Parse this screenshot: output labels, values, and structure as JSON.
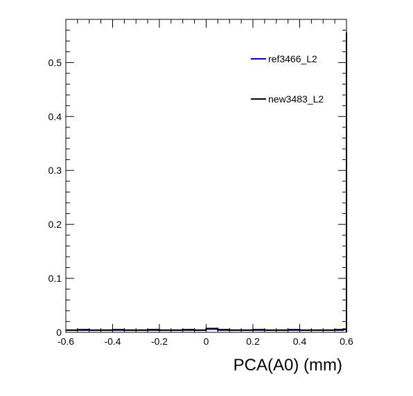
{
  "chart_data": {
    "type": "line",
    "title": "",
    "xlabel": "PCA(A0) (mm)",
    "ylabel": "",
    "xlim": [
      -0.6,
      0.6
    ],
    "ylim": [
      0,
      0.58
    ],
    "x_ticks": [
      -0.6,
      -0.4,
      -0.2,
      0,
      0.2,
      0.4,
      0.6
    ],
    "x_tick_labels": [
      "-0.6",
      "-0.4",
      "-0.2",
      "0",
      "0.2",
      "0.4",
      "0.6"
    ],
    "y_ticks": [
      0,
      0.1,
      0.2,
      0.3,
      0.4,
      0.5
    ],
    "y_tick_labels": [
      "0",
      "0.1",
      "0.2",
      "0.3",
      "0.4",
      "0.5"
    ],
    "grid": false,
    "legend_position": "top-right",
    "series": [
      {
        "name": "ref3466_L2",
        "color": "#0000cc",
        "x": [
          -0.6,
          -0.55,
          -0.5,
          -0.45,
          -0.4,
          -0.35,
          -0.3,
          -0.25,
          -0.2,
          -0.15,
          -0.1,
          -0.05,
          0,
          0.05,
          0.1,
          0.15,
          0.2,
          0.25,
          0.3,
          0.35,
          0.4,
          0.45,
          0.5,
          0.55,
          0.585,
          0.6
        ],
        "y": [
          0.004,
          0.004,
          0.004,
          0.004,
          0.004,
          0.004,
          0.004,
          0.004,
          0.004,
          0.004,
          0.004,
          0.004,
          0.006,
          0.004,
          0.004,
          0.004,
          0.004,
          0.004,
          0.004,
          0.004,
          0.004,
          0.004,
          0.004,
          0.004,
          0.005,
          0.555
        ]
      },
      {
        "name": "new3483_L2",
        "color": "#000000",
        "x": [
          -0.6,
          -0.55,
          -0.5,
          -0.45,
          -0.4,
          -0.35,
          -0.3,
          -0.25,
          -0.2,
          -0.15,
          -0.1,
          -0.05,
          0,
          0.05,
          0.1,
          0.15,
          0.2,
          0.25,
          0.3,
          0.35,
          0.4,
          0.45,
          0.5,
          0.55,
          0.585,
          0.6
        ],
        "y": [
          0.004,
          0.005,
          0.004,
          0.004,
          0.005,
          0.004,
          0.004,
          0.005,
          0.004,
          0.004,
          0.005,
          0.004,
          0.007,
          0.005,
          0.004,
          0.004,
          0.005,
          0.004,
          0.004,
          0.005,
          0.004,
          0.004,
          0.004,
          0.005,
          0.006,
          0.556
        ]
      }
    ]
  }
}
